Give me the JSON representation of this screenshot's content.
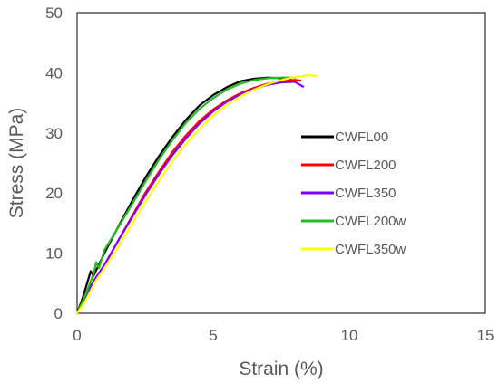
{
  "chart_data": {
    "type": "line",
    "title": "",
    "xlabel": "Strain (%)",
    "ylabel": "Stress (MPa)",
    "xlim": [
      0,
      15
    ],
    "ylim": [
      0,
      50
    ],
    "xticks": [
      "0",
      "5",
      "10",
      "15"
    ],
    "yticks": [
      "0",
      "10",
      "20",
      "30",
      "40",
      "50"
    ],
    "grid": false,
    "legend_position": "right",
    "series": [
      {
        "name": "CWFL00",
        "color": "#000000",
        "x": [
          0,
          0.2,
          0.4,
          0.5,
          0.6,
          1,
          1.5,
          2,
          2.5,
          3,
          3.5,
          4,
          4.5,
          5,
          5.5,
          6,
          6.5,
          7,
          7.5,
          7.9
        ],
        "y": [
          0,
          2.5,
          5.5,
          7,
          6.2,
          10,
          14.3,
          18.5,
          22.5,
          26.1,
          29.3,
          32.2,
          34.6,
          36.3,
          37.6,
          38.6,
          39,
          39.2,
          39.1,
          38.8
        ]
      },
      {
        "name": "CWFL200",
        "color": "#ff0000",
        "x": [
          0,
          0.3,
          0.5,
          0.7,
          1,
          1.5,
          2,
          2.5,
          3,
          3.5,
          4,
          4.5,
          5,
          5.5,
          6,
          6.5,
          7,
          7.5,
          8,
          8.2
        ],
        "y": [
          0,
          2.5,
          4.5,
          6,
          8,
          12,
          16,
          20,
          23.5,
          26.8,
          29.6,
          32,
          33.9,
          35.4,
          36.6,
          37.5,
          38.2,
          38.6,
          38.8,
          38.7
        ]
      },
      {
        "name": "CWFL350",
        "color": "#7f00ff",
        "x": [
          0,
          0.3,
          0.5,
          0.7,
          1,
          1.5,
          2,
          2.5,
          3,
          3.5,
          4,
          4.5,
          5,
          5.5,
          6,
          6.5,
          7,
          7.5,
          8,
          8.3
        ],
        "y": [
          0,
          2.5,
          4.5,
          6,
          8,
          12,
          15.8,
          19.6,
          23.1,
          26.3,
          29.1,
          31.6,
          33.6,
          35.2,
          36.4,
          37.3,
          38,
          38.4,
          38.5,
          37.7
        ]
      },
      {
        "name": "CWFL200w",
        "color": "#22bb22",
        "x": [
          0,
          0.3,
          0.6,
          0.7,
          0.8,
          1,
          1.5,
          2,
          2.5,
          3,
          3.5,
          4,
          4.5,
          5,
          5.5,
          6,
          6.5,
          7,
          7.5,
          8
        ],
        "y": [
          0,
          3,
          6.5,
          8.5,
          7.5,
          10.5,
          14.2,
          18,
          21.8,
          25.5,
          28.8,
          31.7,
          34,
          35.8,
          37.2,
          38.2,
          38.8,
          39.1,
          39.2,
          39.2
        ]
      },
      {
        "name": "CWFL350w",
        "color": "#ffff00",
        "x": [
          0,
          0.3,
          0.5,
          0.7,
          1,
          1.5,
          2,
          2.5,
          3,
          3.5,
          4,
          4.5,
          5,
          5.5,
          6,
          6.5,
          7,
          7.5,
          8,
          8.5,
          8.8
        ],
        "y": [
          0,
          2,
          3.8,
          5.5,
          7.5,
          11,
          14.8,
          18.5,
          22,
          25.3,
          28.2,
          30.7,
          32.9,
          34.7,
          36.1,
          37.2,
          38.1,
          38.8,
          39.3,
          39.6,
          39.5
        ]
      }
    ]
  }
}
